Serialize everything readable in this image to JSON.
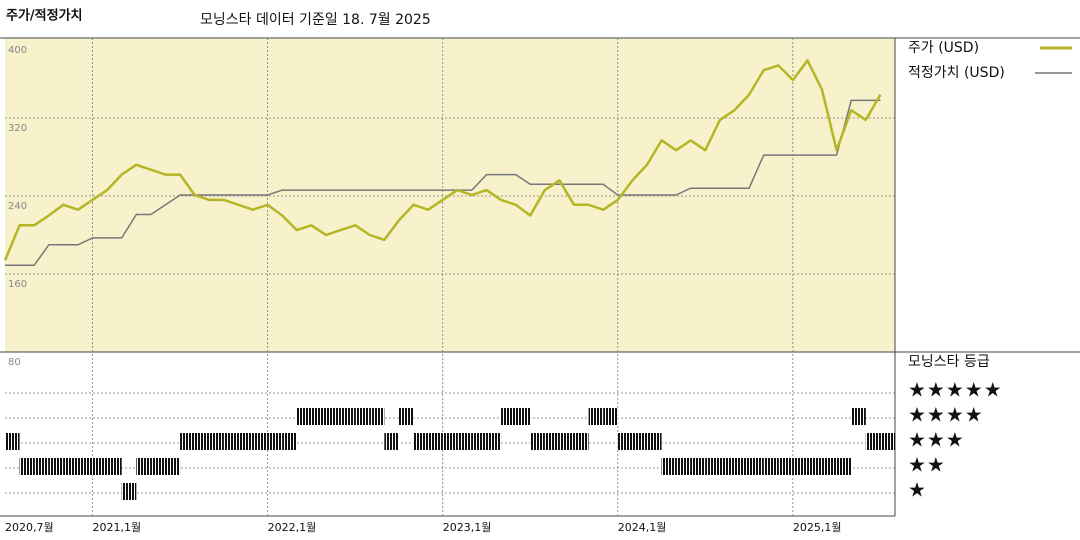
{
  "chart_data": {
    "type": "line",
    "title": "주가/적정가치",
    "subtitle": "모닝스타 데이터 기준일 18. 7월 2025",
    "x": [
      "2020-07",
      "2020-08",
      "2020-09",
      "2020-10",
      "2020-11",
      "2020-12",
      "2021-01",
      "2021-02",
      "2021-03",
      "2021-04",
      "2021-05",
      "2021-06",
      "2021-07",
      "2021-08",
      "2021-09",
      "2021-10",
      "2021-11",
      "2021-12",
      "2022-01",
      "2022-02",
      "2022-03",
      "2022-04",
      "2022-05",
      "2022-06",
      "2022-07",
      "2022-08",
      "2022-09",
      "2022-10",
      "2022-11",
      "2022-12",
      "2023-01",
      "2023-02",
      "2023-03",
      "2023-04",
      "2023-05",
      "2023-06",
      "2023-07",
      "2023-08",
      "2023-09",
      "2023-10",
      "2023-11",
      "2023-12",
      "2024-01",
      "2024-02",
      "2024-03",
      "2024-04",
      "2024-05",
      "2024-06",
      "2024-07",
      "2024-08",
      "2024-09",
      "2024-10",
      "2024-11",
      "2024-12",
      "2025-01",
      "2025-02",
      "2025-03",
      "2025-04",
      "2025-05",
      "2025-06",
      "2025-07"
    ],
    "xlim": [
      "2020-07",
      "2025-08"
    ],
    "xticks": [
      {
        "value": "2020-07",
        "label": "2020,7월"
      },
      {
        "value": "2021-01",
        "label": "2021,1월"
      },
      {
        "value": "2022-01",
        "label": "2022,1월"
      },
      {
        "value": "2023-01",
        "label": "2023,1월"
      },
      {
        "value": "2024-01",
        "label": "2024,1월"
      },
      {
        "value": "2025-01",
        "label": "2025,1월"
      }
    ],
    "ylim": [
      80,
      400
    ],
    "yticks": [
      80,
      160,
      240,
      320,
      400
    ],
    "grid": true,
    "series": [
      {
        "name": "주가 (USD)",
        "color": "#b5b526",
        "values": [
          174,
          210,
          210,
          220,
          231,
          226,
          236,
          246,
          262,
          272,
          267,
          262,
          262,
          241,
          236,
          236,
          231,
          226,
          231,
          220,
          205,
          210,
          200,
          205,
          210,
          200,
          195,
          215,
          231,
          226,
          236,
          246,
          241,
          246,
          236,
          231,
          220,
          246,
          256,
          231,
          231,
          226,
          236,
          256,
          272,
          297,
          287,
          297,
          287,
          318,
          328,
          344,
          369,
          374,
          359,
          379,
          349,
          287,
          328,
          318,
          344
        ]
      },
      {
        "name": "적정가치 (USD)",
        "color": "#777777",
        "values": [
          169,
          169,
          169,
          190,
          190,
          190,
          197,
          197,
          197,
          221,
          221,
          231,
          241,
          241,
          241,
          241,
          241,
          241,
          241,
          246,
          246,
          246,
          246,
          246,
          246,
          246,
          246,
          246,
          246,
          246,
          246,
          246,
          246,
          262,
          262,
          262,
          252,
          252,
          252,
          252,
          252,
          252,
          241,
          241,
          241,
          241,
          241,
          248,
          248,
          248,
          248,
          248,
          282,
          282,
          282,
          282,
          282,
          282,
          338,
          338,
          338
        ]
      }
    ],
    "ratings": {
      "title": "모닝스타 등급",
      "labels": [
        {
          "value": 5,
          "label": "★★★★★"
        },
        {
          "value": 4,
          "label": "★★★★"
        },
        {
          "value": 3,
          "label": "★★★"
        },
        {
          "value": 2,
          "label": "★★"
        },
        {
          "value": 1,
          "label": "★"
        }
      ],
      "values": [
        3,
        2,
        2,
        2,
        2,
        2,
        2,
        2,
        1,
        2,
        2,
        2,
        3,
        3,
        3,
        3,
        3,
        3,
        3,
        3,
        4,
        4,
        4,
        4,
        4,
        4,
        3,
        4,
        3,
        3,
        3,
        3,
        3,
        3,
        4,
        4,
        3,
        3,
        3,
        3,
        4,
        4,
        3,
        3,
        3,
        2,
        2,
        2,
        2,
        2,
        2,
        2,
        2,
        2,
        2,
        2,
        2,
        2,
        4,
        3,
        3
      ]
    }
  }
}
